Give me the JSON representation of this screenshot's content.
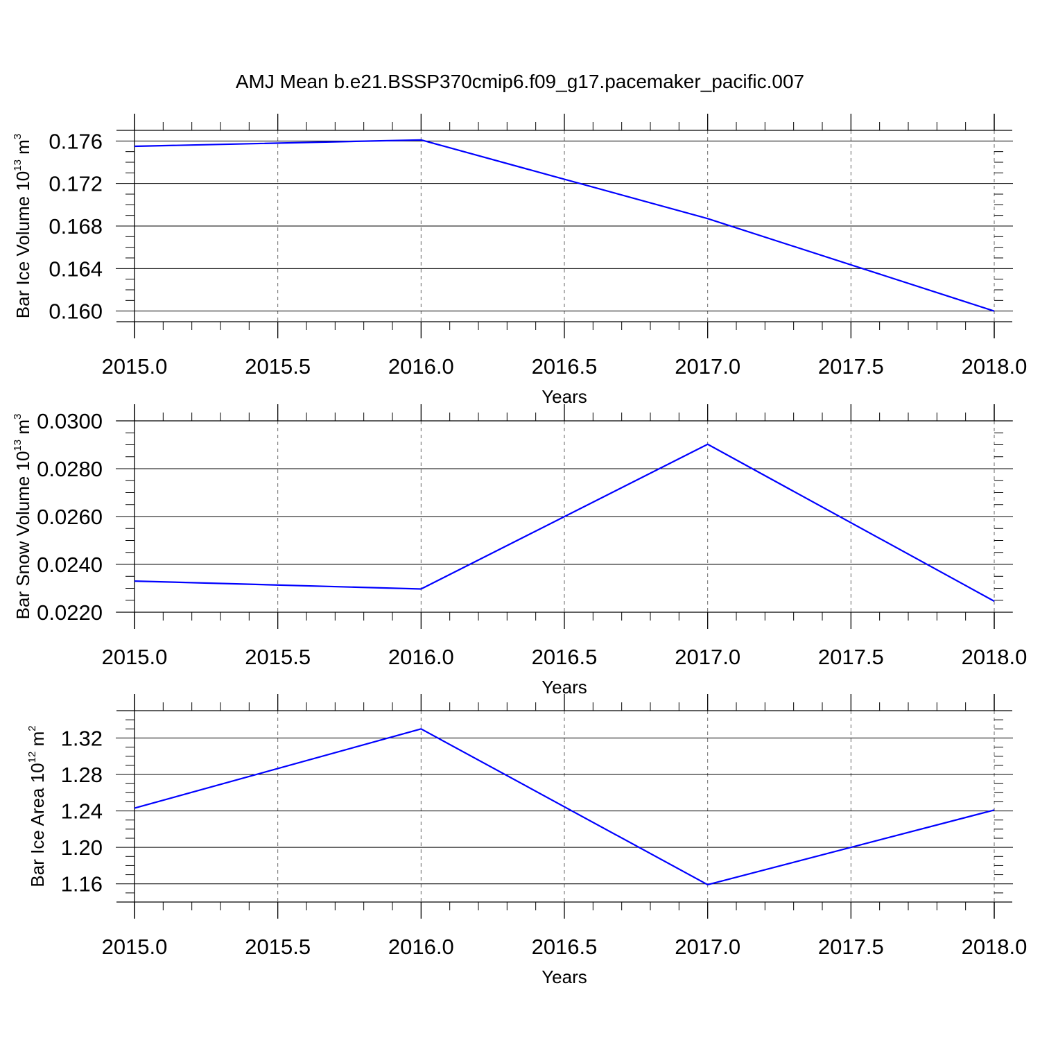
{
  "title": "AMJ Mean b.e21.BSSP370cmip6.f09_g17.pacemaker_pacific.007",
  "colors": {
    "line": "#0000ff",
    "axes": "#000000",
    "grid": "#666666"
  },
  "chart_data": [
    {
      "type": "line",
      "title": "AMJ Mean b.e21.BSSP370cmip6.f09_g17.pacemaker_pacific.007",
      "xlabel": "Years",
      "ylabel": {
        "text": "Bar Ice Volume 10",
        "exp": "13",
        "unit": " m",
        "unit_exp": "3"
      },
      "x": [
        2015.0,
        2016.0,
        2017.0,
        2018.0
      ],
      "series": [
        {
          "values": [
            0.1755,
            0.1761,
            0.1687,
            0.16
          ]
        }
      ],
      "xlim": [
        2015.0,
        2018.0
      ],
      "ylim": [
        0.159,
        0.177
      ],
      "xticks": [
        "2015.0",
        "2015.5",
        "2016.0",
        "2016.5",
        "2017.0",
        "2017.5",
        "2018.0"
      ],
      "yticks": [
        "0.160",
        "0.164",
        "0.168",
        "0.172",
        "0.176"
      ],
      "grid": "vertical dashed at major x ticks",
      "legend": "none"
    },
    {
      "type": "line",
      "xlabel": "Years",
      "ylabel": {
        "text": "Bar Snow Volume 10",
        "exp": "13",
        "unit": " m",
        "unit_exp": "3"
      },
      "x": [
        2015.0,
        2016.0,
        2017.0,
        2018.0
      ],
      "series": [
        {
          "values": [
            0.0233,
            0.02297,
            0.02902,
            0.02246
          ]
        }
      ],
      "xlim": [
        2015.0,
        2018.0
      ],
      "ylim": [
        0.022,
        0.03
      ],
      "xticks": [
        "2015.0",
        "2015.5",
        "2016.0",
        "2016.5",
        "2017.0",
        "2017.5",
        "2018.0"
      ],
      "yticks": [
        "0.0220",
        "0.0240",
        "0.0260",
        "0.0280",
        "0.0300"
      ],
      "grid": "vertical dashed at major x ticks",
      "legend": "none"
    },
    {
      "type": "line",
      "xlabel": "Years",
      "ylabel": {
        "text": "Bar Ice Area 10",
        "exp": "12",
        "unit": " m",
        "unit_exp": "2"
      },
      "x": [
        2015.0,
        2016.0,
        2017.0,
        2018.0
      ],
      "series": [
        {
          "values": [
            1.243,
            1.33,
            1.159,
            1.241
          ]
        }
      ],
      "xlim": [
        2015.0,
        2018.0
      ],
      "ylim": [
        1.14,
        1.35
      ],
      "xticks": [
        "2015.0",
        "2015.5",
        "2016.0",
        "2016.5",
        "2017.0",
        "2017.5",
        "2018.0"
      ],
      "yticks": [
        "1.16",
        "1.20",
        "1.24",
        "1.28",
        "1.32"
      ],
      "grid": "vertical dashed at major x ticks",
      "legend": "none"
    }
  ]
}
